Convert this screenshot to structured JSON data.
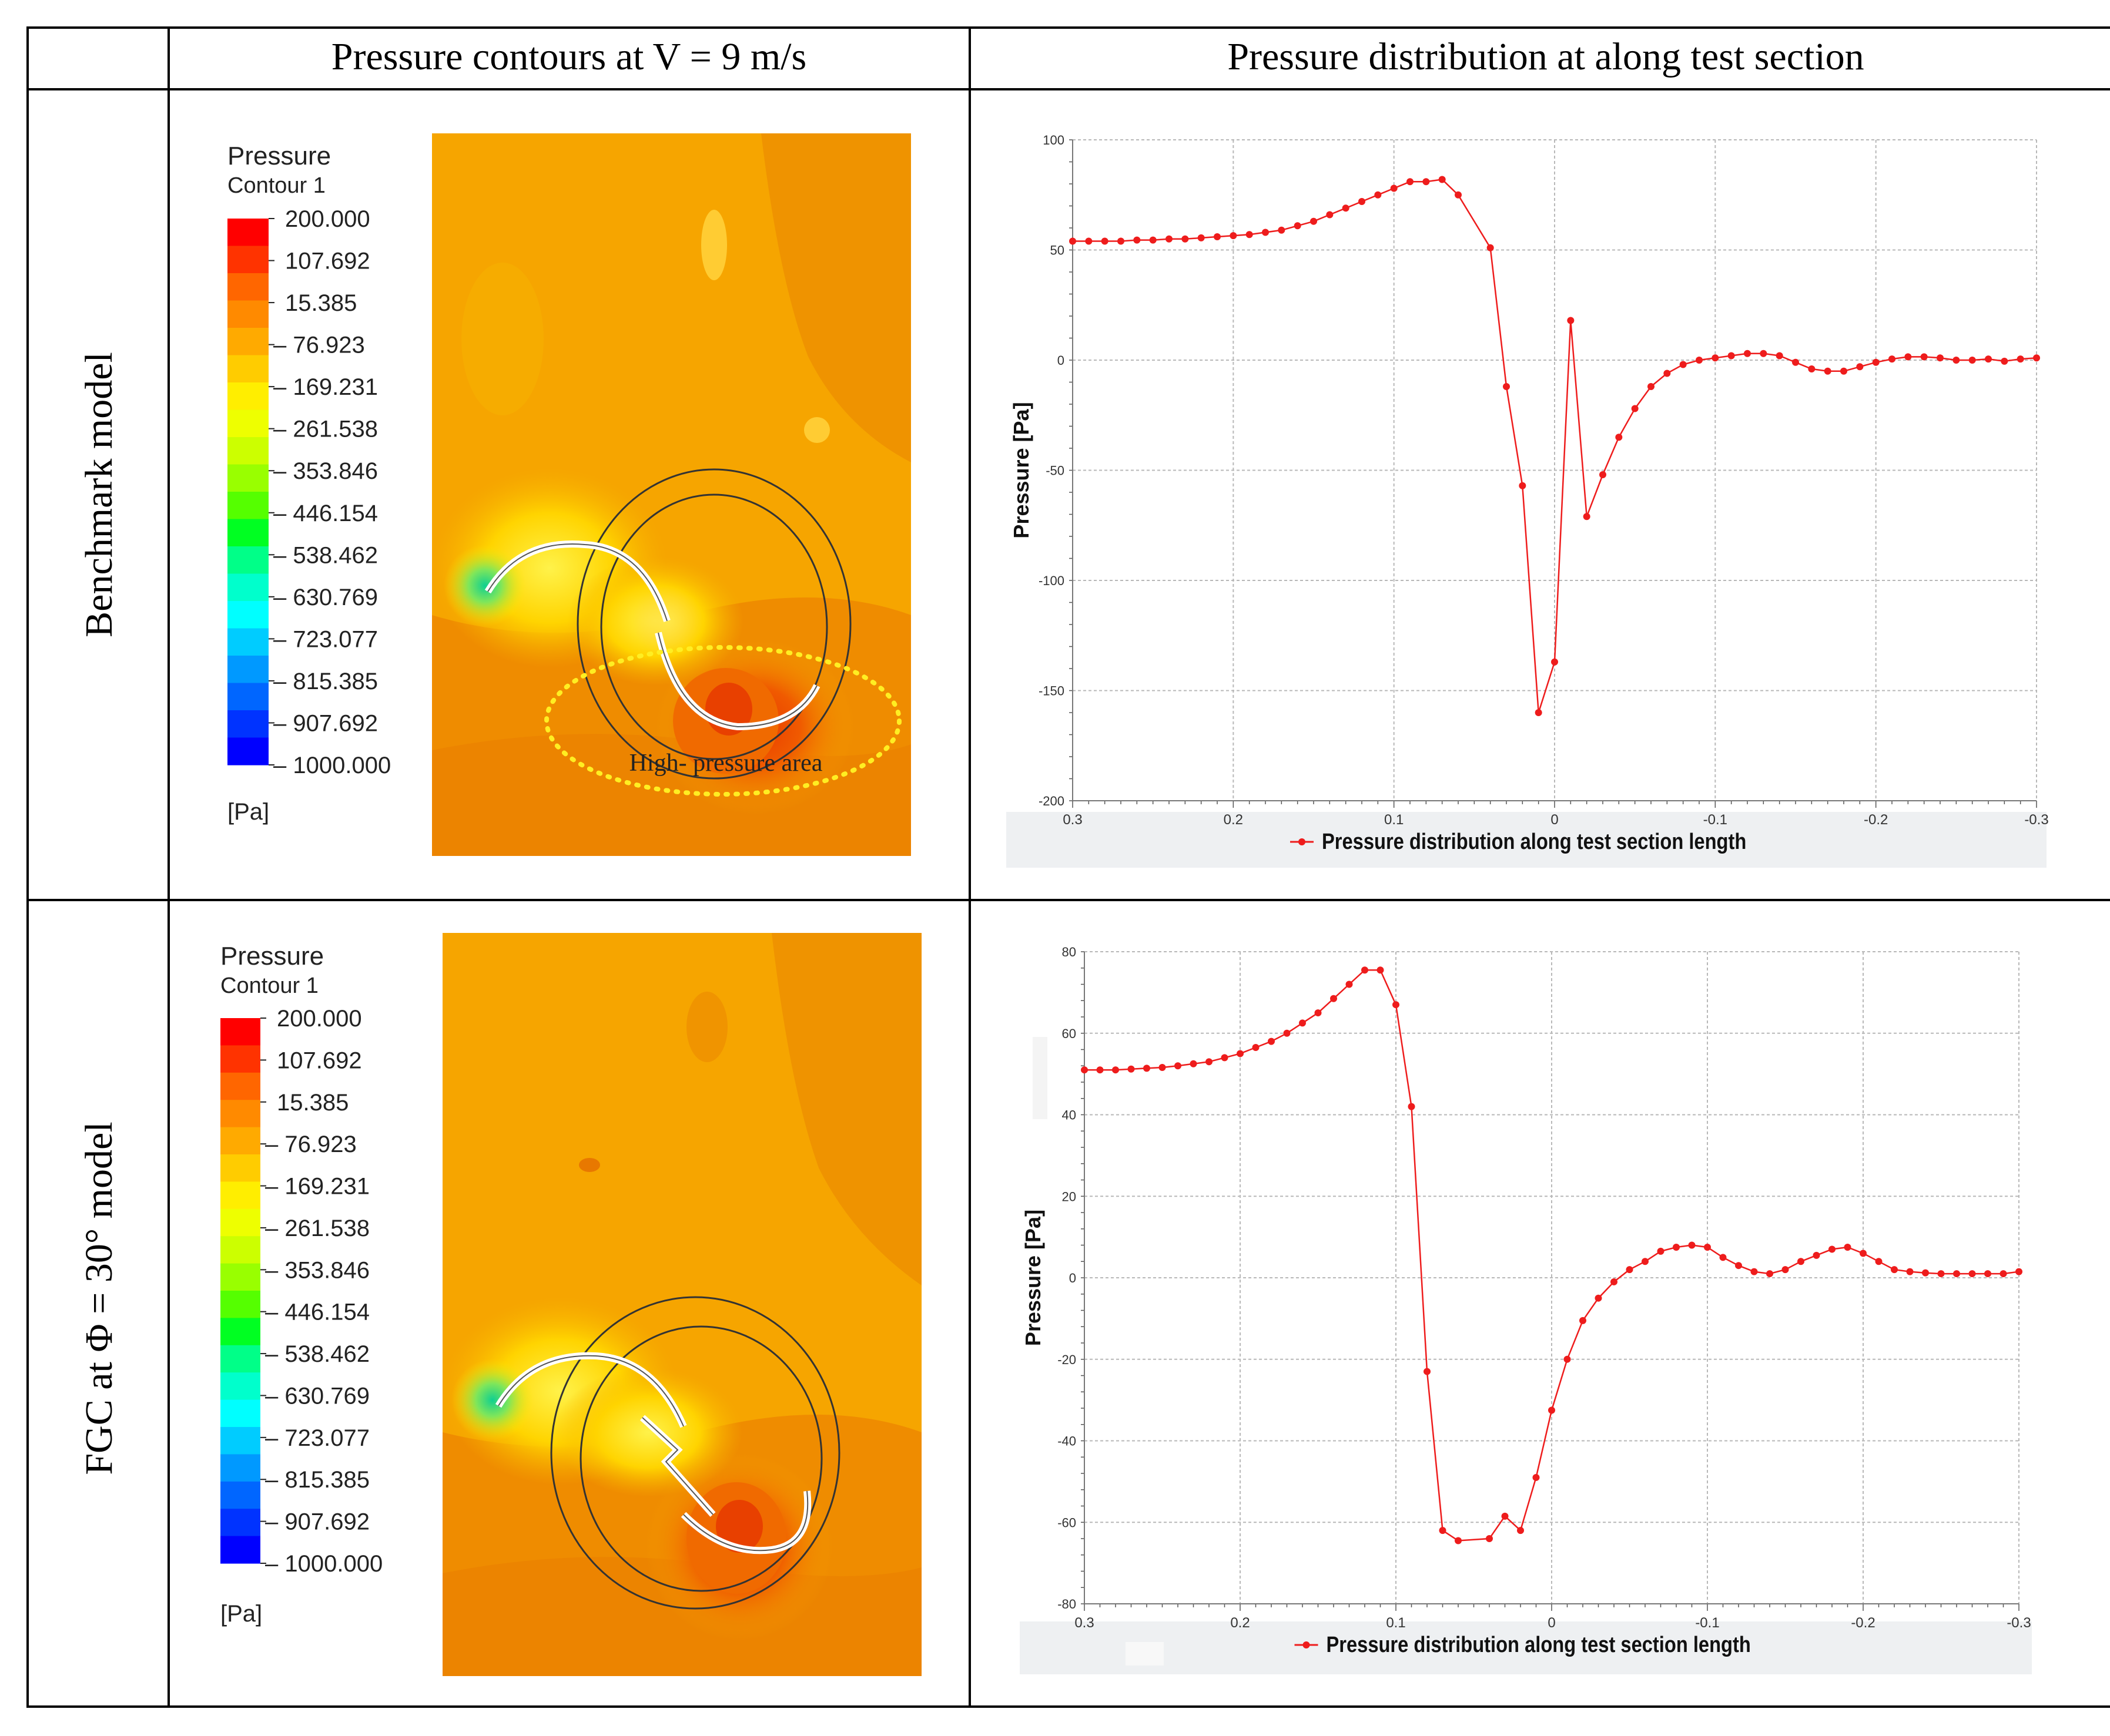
{
  "table": {
    "header": {
      "col1": "Pressure contours at V = 9 m/s",
      "col2": "Pressure distribution at along test section"
    },
    "rows": [
      {
        "label": "Benchmark model"
      },
      {
        "label": "FGC at Φ = 30° model"
      }
    ]
  },
  "contour": {
    "title": "Pressure",
    "subtitle": "Contour 1",
    "unit": "[Pa]",
    "ticks": [
      "200.000",
      "107.692",
      "15.385",
      "– 76.923",
      "– 169.231",
      "– 261.538",
      "– 353.846",
      "– 446.154",
      "– 538.462",
      "– 630.769",
      "– 723.077",
      "– 815.385",
      "– 907.692",
      "– 1000.000"
    ],
    "colors": [
      "#ff0000",
      "#ff3300",
      "#ff6600",
      "#ff8a00",
      "#ffaa00",
      "#ffcc00",
      "#ffee00",
      "#eeff00",
      "#ccff00",
      "#99ff00",
      "#55ff00",
      "#00ff22",
      "#00ff88",
      "#00ffcc",
      "#00ffff",
      "#00ccff",
      "#0099ff",
      "#0066ff",
      "#0033ff",
      "#0000ff"
    ],
    "annotation": "High- pressure area"
  },
  "chart_data": [
    {
      "type": "line",
      "title": "",
      "xlabel": "Pressure distribution along test section length",
      "ylabel": "Pressure [Pa]",
      "legend": "Pressure distribution along test section length",
      "xlim": [
        0.3,
        -0.3
      ],
      "ylim": [
        -200,
        100
      ],
      "xticks": [
        "0.3",
        "0.2",
        "0.1",
        "0",
        "-0.1",
        "-0.2",
        "-0.3"
      ],
      "yticks": [
        "100",
        "50",
        "0",
        "-50",
        "-100",
        "-150",
        "-200"
      ],
      "x": [
        0.3,
        0.29,
        0.28,
        0.27,
        0.26,
        0.25,
        0.24,
        0.23,
        0.22,
        0.21,
        0.2,
        0.19,
        0.18,
        0.17,
        0.16,
        0.15,
        0.14,
        0.13,
        0.12,
        0.11,
        0.1,
        0.09,
        0.08,
        0.07,
        0.06,
        0.04,
        0.03,
        0.02,
        0.01,
        0.0,
        -0.01,
        -0.02,
        -0.03,
        -0.04,
        -0.05,
        -0.06,
        -0.07,
        -0.08,
        -0.09,
        -0.1,
        -0.11,
        -0.12,
        -0.13,
        -0.14,
        -0.15,
        -0.16,
        -0.17,
        -0.18,
        -0.19,
        -0.2,
        -0.21,
        -0.22,
        -0.23,
        -0.24,
        -0.25,
        -0.26,
        -0.27,
        -0.28,
        -0.29,
        -0.3
      ],
      "y": [
        54,
        54,
        54,
        54,
        54.5,
        54.5,
        55,
        55,
        55.5,
        56,
        56.5,
        57,
        58,
        59,
        61,
        63,
        66,
        69,
        72,
        75,
        78,
        81,
        81,
        82,
        75,
        51,
        -12,
        -57,
        -160,
        -137,
        18,
        -71,
        -52,
        -35,
        -22,
        -12,
        -6,
        -2,
        0,
        1,
        2,
        3,
        3,
        2,
        -1,
        -4,
        -5,
        -5,
        -3,
        -1,
        0.5,
        1.5,
        1.5,
        1,
        0,
        0,
        0.5,
        -0.5,
        0.5,
        1
      ]
    },
    {
      "type": "line",
      "title": "",
      "xlabel": "Pressure distribution along test section length",
      "ylabel": "Pressure [Pa]",
      "legend": "Pressure distribution along test section length",
      "xlim": [
        0.3,
        -0.3
      ],
      "ylim": [
        -80,
        80
      ],
      "xticks": [
        "0.3",
        "0.2",
        "0.1",
        "0",
        "-0.1",
        "-0.2",
        "-0.3"
      ],
      "yticks": [
        "80",
        "60",
        "40",
        "20",
        "0",
        "-20",
        "-40",
        "-60",
        "-80"
      ],
      "x": [
        0.3,
        0.29,
        0.28,
        0.27,
        0.26,
        0.25,
        0.24,
        0.23,
        0.22,
        0.21,
        0.2,
        0.19,
        0.18,
        0.17,
        0.16,
        0.15,
        0.14,
        0.13,
        0.12,
        0.11,
        0.1,
        0.09,
        0.08,
        0.07,
        0.06,
        0.04,
        0.03,
        0.02,
        0.01,
        0.0,
        -0.01,
        -0.02,
        -0.03,
        -0.04,
        -0.05,
        -0.06,
        -0.07,
        -0.08,
        -0.09,
        -0.1,
        -0.11,
        -0.12,
        -0.13,
        -0.14,
        -0.15,
        -0.16,
        -0.17,
        -0.18,
        -0.19,
        -0.2,
        -0.21,
        -0.22,
        -0.23,
        -0.24,
        -0.25,
        -0.26,
        -0.27,
        -0.28,
        -0.29,
        -0.3
      ],
      "y": [
        51,
        51,
        51,
        51.2,
        51.4,
        51.6,
        52,
        52.5,
        53,
        54,
        55,
        56.5,
        58,
        60,
        62.5,
        65,
        68.5,
        72,
        75.5,
        75.5,
        67,
        42,
        -23,
        -62,
        -64.5,
        -64,
        -58.5,
        -62,
        -49,
        -32.5,
        -20,
        -10.5,
        -5,
        -1,
        2,
        4,
        6.5,
        7.5,
        8,
        7.5,
        5,
        3,
        1.5,
        1,
        2,
        4,
        5.5,
        7,
        7.5,
        6,
        4,
        2,
        1.5,
        1.2,
        1,
        1,
        1,
        1,
        1,
        1.5
      ]
    }
  ]
}
